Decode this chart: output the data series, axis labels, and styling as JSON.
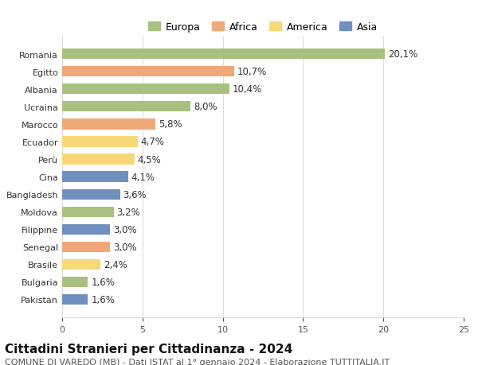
{
  "countries": [
    "Romania",
    "Egitto",
    "Albania",
    "Ucraina",
    "Marocco",
    "Ecuador",
    "Perù",
    "Cina",
    "Bangladesh",
    "Moldova",
    "Filippine",
    "Senegal",
    "Brasile",
    "Bulgaria",
    "Pakistan"
  ],
  "values": [
    20.1,
    10.7,
    10.4,
    8.0,
    5.8,
    4.7,
    4.5,
    4.1,
    3.6,
    3.2,
    3.0,
    3.0,
    2.4,
    1.6,
    1.6
  ],
  "labels": [
    "20,1%",
    "10,7%",
    "10,4%",
    "8,0%",
    "5,8%",
    "4,7%",
    "4,5%",
    "4,1%",
    "3,6%",
    "3,2%",
    "3,0%",
    "3,0%",
    "2,4%",
    "1,6%",
    "1,6%"
  ],
  "continents": [
    "Europa",
    "Africa",
    "Europa",
    "Europa",
    "Africa",
    "America",
    "America",
    "Asia",
    "Asia",
    "Europa",
    "Asia",
    "Africa",
    "America",
    "Europa",
    "Asia"
  ],
  "colors": {
    "Europa": "#a8c080",
    "Africa": "#f0a878",
    "America": "#f8d878",
    "Asia": "#7090c0"
  },
  "legend_colors": {
    "Europa": "#a8c080",
    "Africa": "#f0a878",
    "America": "#f8d878",
    "Asia": "#7090c0"
  },
  "xlim": [
    0,
    25
  ],
  "xticks": [
    0,
    5,
    10,
    15,
    20,
    25
  ],
  "title": "Cittadini Stranieri per Cittadinanza - 2024",
  "subtitle": "COMUNE DI VAREDO (MB) - Dati ISTAT al 1° gennaio 2024 - Elaborazione TUTTITALIA.IT",
  "background_color": "#ffffff",
  "bar_height": 0.6,
  "grid_color": "#dddddd",
  "title_fontsize": 11,
  "subtitle_fontsize": 8,
  "label_fontsize": 8.5,
  "tick_fontsize": 8,
  "legend_fontsize": 9
}
